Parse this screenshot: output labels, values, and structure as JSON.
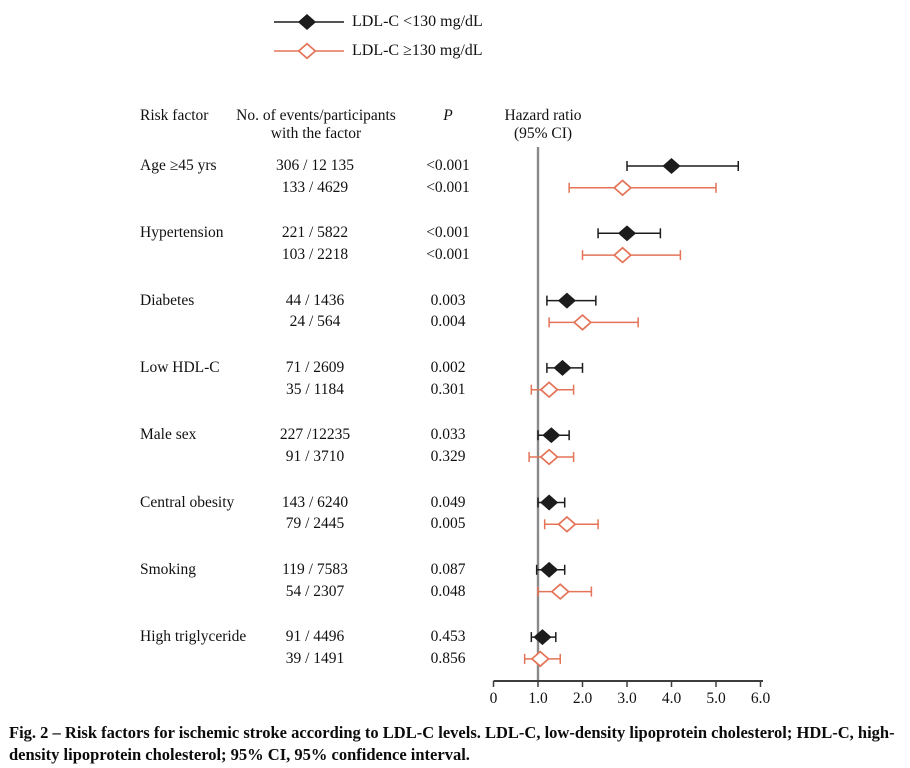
{
  "legend": {
    "items": [
      {
        "label": "LDL-C <130 mg/dL",
        "series": "lt130",
        "marker": "filled-diamond",
        "color": "#1c1c1c"
      },
      {
        "label": "LDL-C ≥130 mg/dL",
        "series": "ge130",
        "marker": "open-diamond",
        "color": "#e47357"
      }
    ]
  },
  "columns": {
    "risk_factor": "Risk factor",
    "events_line1": "No. of events/participants",
    "events_line2": "with the factor",
    "p": "P",
    "hazard_line1": "Hazard ratio",
    "hazard_line2": "(95% CI)"
  },
  "chart_data": {
    "type": "forest",
    "title": "Risk factors for ischemic stroke according to LDL-C levels",
    "x_axis": {
      "ticks": [
        "0",
        "1.0",
        "2.0",
        "3.0",
        "4.0",
        "5.0",
        "6.0"
      ],
      "tick_values": [
        0,
        1,
        2,
        3,
        4,
        5,
        6
      ],
      "range": [
        0,
        6
      ]
    },
    "reference_line_x": 1.0,
    "series_styles": {
      "lt130": {
        "name": "LDL-C <130 mg/dL",
        "color": "#1c1c1c",
        "marker": "filled-diamond"
      },
      "ge130": {
        "name": "LDL-C ≥130 mg/dL",
        "color": "#e47357",
        "marker": "open-diamond"
      }
    },
    "rows": [
      {
        "group": "Age ≥45 yrs",
        "series": "lt130",
        "events": "306 / 12 135",
        "p": "<0.001",
        "hr": 4.0,
        "ci_low": 3.0,
        "ci_high": 5.5
      },
      {
        "group": "",
        "series": "ge130",
        "events": "133 / 4629",
        "p": "<0.001",
        "hr": 2.9,
        "ci_low": 1.7,
        "ci_high": 5.0
      },
      {
        "group": "Hypertension",
        "series": "lt130",
        "events": "221 / 5822",
        "p": "<0.001",
        "hr": 3.0,
        "ci_low": 2.35,
        "ci_high": 3.75
      },
      {
        "group": "",
        "series": "ge130",
        "events": "103 / 2218",
        "p": "<0.001",
        "hr": 2.9,
        "ci_low": 2.0,
        "ci_high": 4.2
      },
      {
        "group": "Diabetes",
        "series": "lt130",
        "events": "44 / 1436",
        "p": "0.003",
        "hr": 1.65,
        "ci_low": 1.2,
        "ci_high": 2.3
      },
      {
        "group": "",
        "series": "ge130",
        "events": "24 / 564",
        "p": "0.004",
        "hr": 2.0,
        "ci_low": 1.25,
        "ci_high": 3.25
      },
      {
        "group": "Low HDL-C",
        "series": "lt130",
        "events": "71 / 2609",
        "p": "0.002",
        "hr": 1.55,
        "ci_low": 1.2,
        "ci_high": 2.0
      },
      {
        "group": "",
        "series": "ge130",
        "events": "35 / 1184",
        "p": "0.301",
        "hr": 1.25,
        "ci_low": 0.85,
        "ci_high": 1.8
      },
      {
        "group": "Male sex",
        "series": "lt130",
        "events": "227 /12235",
        "p": "0.033",
        "hr": 1.3,
        "ci_low": 1.0,
        "ci_high": 1.7
      },
      {
        "group": "",
        "series": "ge130",
        "events": "91 / 3710",
        "p": "0.329",
        "hr": 1.25,
        "ci_low": 0.8,
        "ci_high": 1.8
      },
      {
        "group": "Central obesity",
        "series": "lt130",
        "events": "143 / 6240",
        "p": "0.049",
        "hr": 1.25,
        "ci_low": 1.0,
        "ci_high": 1.6
      },
      {
        "group": "",
        "series": "ge130",
        "events": "79 / 2445",
        "p": "0.005",
        "hr": 1.65,
        "ci_low": 1.15,
        "ci_high": 2.35
      },
      {
        "group": "Smoking",
        "series": "lt130",
        "events": "119 / 7583",
        "p": "0.087",
        "hr": 1.25,
        "ci_low": 0.97,
        "ci_high": 1.6
      },
      {
        "group": "",
        "series": "ge130",
        "events": "54 / 2307",
        "p": "0.048",
        "hr": 1.5,
        "ci_low": 1.0,
        "ci_high": 2.2
      },
      {
        "group": "High triglyceride",
        "series": "lt130",
        "events": "91 / 4496",
        "p": "0.453",
        "hr": 1.1,
        "ci_low": 0.85,
        "ci_high": 1.4
      },
      {
        "group": "",
        "series": "ge130",
        "events": "39 / 1491",
        "p": "0.856",
        "hr": 1.05,
        "ci_low": 0.7,
        "ci_high": 1.5
      }
    ]
  },
  "caption": {
    "text": "Fig. 2 – Risk factors for ischemic stroke according to LDL-C levels. LDL-C, low-density lipoprotein cholesterol; HDL-C, high-density lipoprotein cholesterol; 95% CI, 95% confidence interval."
  },
  "colors": {
    "black_series": "#1c1c1c",
    "orange_series": "#e47357",
    "reference_line": "#8a8a8a",
    "axis": "#3d3d3d"
  }
}
